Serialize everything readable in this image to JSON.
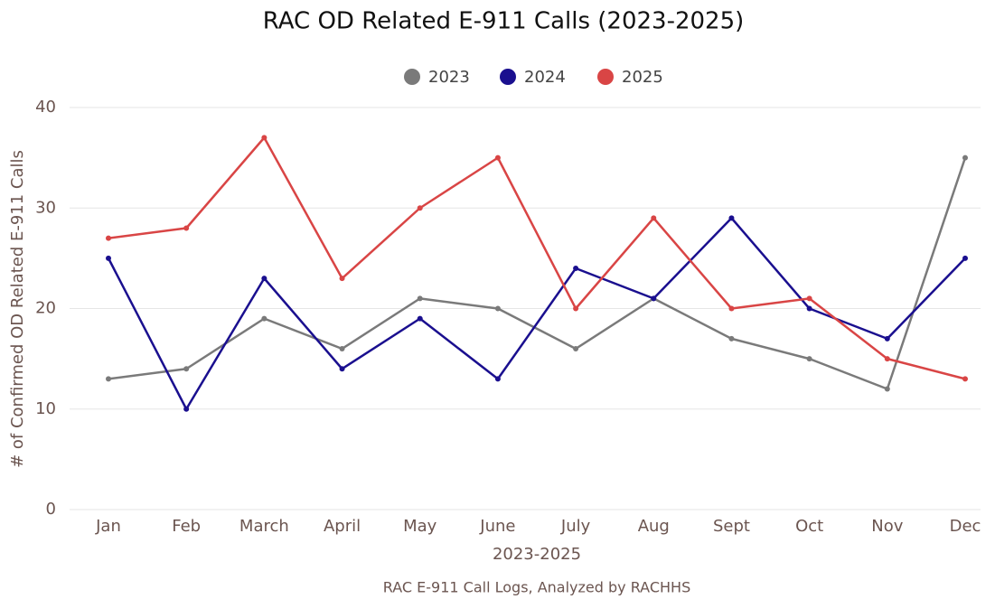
{
  "chart_data": {
    "type": "line",
    "title": "RAC OD Related E-911 Calls (2023-2025)",
    "x_label": "2023-2025",
    "y_label": "# of Confirmed OD Related E-911 Calls",
    "source": "RAC E-911 Call Logs, Analyzed by RACHHS",
    "categories": [
      "Jan",
      "Feb",
      "March",
      "April",
      "May",
      "June",
      "July",
      "Aug",
      "Sept",
      "Oct",
      "Nov",
      "Dec"
    ],
    "series": [
      {
        "name": "2023",
        "color": "#7a7a7a",
        "values": [
          13,
          14,
          19,
          16,
          21,
          20,
          16,
          21,
          17,
          15,
          12,
          35
        ]
      },
      {
        "name": "2024",
        "color": "#1a0f8f",
        "values": [
          25,
          10,
          23,
          14,
          19,
          13,
          24,
          21,
          29,
          20,
          17,
          25
        ]
      },
      {
        "name": "2025",
        "color": "#d94545",
        "values": [
          27,
          28,
          37,
          23,
          30,
          35,
          20,
          29,
          20,
          21,
          15,
          13
        ]
      }
    ],
    "ylim": [
      0,
      40
    ],
    "yticks": [
      0,
      10,
      20,
      30,
      40
    ],
    "grid": true,
    "legend": "top"
  }
}
